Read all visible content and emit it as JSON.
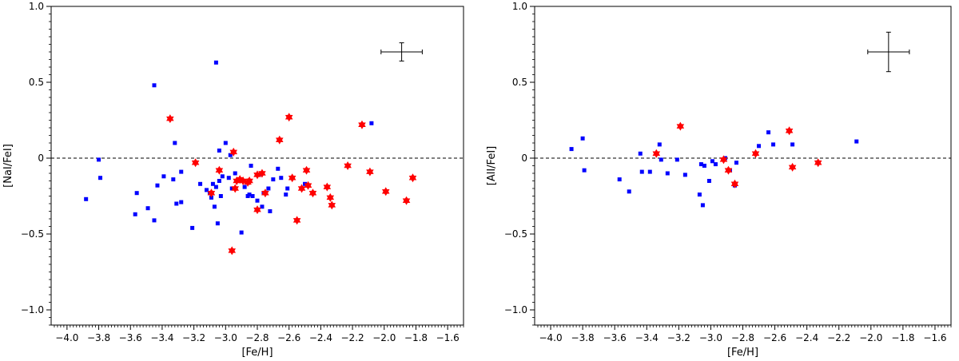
{
  "chart_data": [
    {
      "type": "scatter",
      "title": "",
      "xlabel": "[Fe/H]",
      "ylabel": "[NaI/FeI]",
      "xlim": [
        -4.1,
        -1.5
      ],
      "ylim": [
        -1.1,
        1.0
      ],
      "xticks": [
        -4.0,
        -3.8,
        -3.6,
        -3.4,
        -3.2,
        -3.0,
        -2.8,
        -2.6,
        -2.4,
        -2.2,
        -2.0,
        -1.8,
        -1.6
      ],
      "xtick_labels": [
        "−4.0",
        "−3.8",
        "−3.6",
        "−3.4",
        "−3.2",
        "−3.0",
        "−2.8",
        "−2.6",
        "−2.4",
        "−2.2",
        "−2.0",
        "−1.8",
        "−1.6"
      ],
      "yticks": [
        1.0,
        0.5,
        0,
        -0.5,
        -1.0
      ],
      "ytick_labels": [
        "1.0",
        "0.5",
        "0",
        "−0.5",
        "−1.0"
      ],
      "reference_line_y": 0,
      "error_bar": {
        "x": -1.89,
        "y": 0.7,
        "xerr": 0.13,
        "yerr": 0.06
      },
      "series": [
        {
          "name": "blue squares",
          "marker": "square",
          "color": "#0000ff",
          "points": [
            [
              -3.88,
              -0.27
            ],
            [
              -3.8,
              -0.01
            ],
            [
              -3.79,
              -0.13
            ],
            [
              -3.56,
              -0.23
            ],
            [
              -3.57,
              -0.37
            ],
            [
              -3.49,
              -0.33
            ],
            [
              -3.45,
              0.48
            ],
            [
              -3.45,
              -0.41
            ],
            [
              -3.43,
              -0.18
            ],
            [
              -3.39,
              -0.12
            ],
            [
              -3.33,
              -0.14
            ],
            [
              -3.32,
              0.1
            ],
            [
              -3.31,
              -0.3
            ],
            [
              -3.28,
              -0.29
            ],
            [
              -3.28,
              -0.09
            ],
            [
              -3.21,
              -0.46
            ],
            [
              -3.16,
              -0.17
            ],
            [
              -3.12,
              -0.21
            ],
            [
              -3.1,
              -0.23
            ],
            [
              -3.09,
              -0.26
            ],
            [
              -3.08,
              -0.17
            ],
            [
              -3.07,
              -0.32
            ],
            [
              -3.06,
              0.63
            ],
            [
              -3.06,
              -0.19
            ],
            [
              -3.05,
              -0.43
            ],
            [
              -3.04,
              0.05
            ],
            [
              -3.04,
              -0.15
            ],
            [
              -3.03,
              -0.25
            ],
            [
              -3.02,
              -0.12
            ],
            [
              -3.0,
              0.1
            ],
            [
              -2.98,
              -0.13
            ],
            [
              -2.97,
              0.02
            ],
            [
              -2.96,
              -0.2
            ],
            [
              -2.94,
              -0.1
            ],
            [
              -2.93,
              -0.15
            ],
            [
              -2.9,
              -0.49
            ],
            [
              -2.88,
              -0.19
            ],
            [
              -2.86,
              -0.25
            ],
            [
              -2.85,
              -0.24
            ],
            [
              -2.84,
              -0.05
            ],
            [
              -2.83,
              -0.25
            ],
            [
              -2.8,
              -0.28
            ],
            [
              -2.79,
              -0.11
            ],
            [
              -2.77,
              -0.32
            ],
            [
              -2.76,
              -0.23
            ],
            [
              -2.73,
              -0.2
            ],
            [
              -2.72,
              -0.35
            ],
            [
              -2.7,
              -0.14
            ],
            [
              -2.67,
              -0.07
            ],
            [
              -2.65,
              -0.13
            ],
            [
              -2.62,
              -0.24
            ],
            [
              -2.61,
              -0.2
            ],
            [
              -2.5,
              -0.17
            ],
            [
              -2.08,
              0.23
            ]
          ]
        },
        {
          "name": "red stars",
          "marker": "star",
          "color": "#ff0000",
          "points": [
            [
              -3.35,
              0.26
            ],
            [
              -3.19,
              -0.03
            ],
            [
              -3.09,
              -0.23
            ],
            [
              -3.04,
              -0.08
            ],
            [
              -2.96,
              -0.61
            ],
            [
              -2.95,
              0.04
            ],
            [
              -2.94,
              -0.2
            ],
            [
              -2.93,
              -0.15
            ],
            [
              -2.91,
              -0.14
            ],
            [
              -2.89,
              -0.15
            ],
            [
              -2.86,
              -0.16
            ],
            [
              -2.85,
              -0.15
            ],
            [
              -2.8,
              -0.34
            ],
            [
              -2.8,
              -0.11
            ],
            [
              -2.77,
              -0.1
            ],
            [
              -2.75,
              -0.23
            ],
            [
              -2.66,
              0.12
            ],
            [
              -2.6,
              0.27
            ],
            [
              -2.58,
              -0.13
            ],
            [
              -2.55,
              -0.41
            ],
            [
              -2.52,
              -0.2
            ],
            [
              -2.49,
              -0.08
            ],
            [
              -2.48,
              -0.18
            ],
            [
              -2.45,
              -0.23
            ],
            [
              -2.36,
              -0.19
            ],
            [
              -2.34,
              -0.26
            ],
            [
              -2.33,
              -0.31
            ],
            [
              -2.23,
              -0.05
            ],
            [
              -2.14,
              0.22
            ],
            [
              -2.09,
              -0.09
            ],
            [
              -1.99,
              -0.22
            ],
            [
              -1.86,
              -0.28
            ],
            [
              -1.82,
              -0.13
            ]
          ]
        }
      ]
    },
    {
      "type": "scatter",
      "title": "",
      "xlabel": "[Fe/H]",
      "ylabel": "[AlI/FeI]",
      "xlim": [
        -4.1,
        -1.5
      ],
      "ylim": [
        -1.1,
        1.0
      ],
      "xticks": [
        -4.0,
        -3.8,
        -3.6,
        -3.4,
        -3.2,
        -3.0,
        -2.8,
        -2.6,
        -2.4,
        -2.2,
        -2.0,
        -1.8,
        -1.6
      ],
      "xtick_labels": [
        "−4.0",
        "−3.8",
        "−3.6",
        "−3.4",
        "−3.2",
        "−3.0",
        "−2.8",
        "−2.6",
        "−2.4",
        "−2.2",
        "−2.0",
        "−1.8",
        "−1.6"
      ],
      "yticks": [
        1.0,
        0.5,
        0,
        -0.5,
        -1.0
      ],
      "ytick_labels": [
        "1.0",
        "0.5",
        "0",
        "−0.5",
        "−1.0"
      ],
      "reference_line_y": 0,
      "error_bar": {
        "x": -1.89,
        "y": 0.7,
        "xerr": 0.13,
        "yerr": 0.13
      },
      "series": [
        {
          "name": "blue squares",
          "marker": "square",
          "color": "#0000ff",
          "points": [
            [
              -3.87,
              0.06
            ],
            [
              -3.8,
              0.13
            ],
            [
              -3.79,
              -0.08
            ],
            [
              -3.57,
              -0.14
            ],
            [
              -3.51,
              -0.22
            ],
            [
              -3.44,
              0.03
            ],
            [
              -3.43,
              -0.09
            ],
            [
              -3.38,
              -0.09
            ],
            [
              -3.32,
              0.09
            ],
            [
              -3.31,
              -0.01
            ],
            [
              -3.27,
              -0.1
            ],
            [
              -3.21,
              -0.01
            ],
            [
              -3.16,
              -0.11
            ],
            [
              -3.07,
              -0.24
            ],
            [
              -3.06,
              -0.04
            ],
            [
              -3.05,
              -0.31
            ],
            [
              -3.04,
              -0.05
            ],
            [
              -3.01,
              -0.15
            ],
            [
              -2.99,
              -0.02
            ],
            [
              -2.97,
              -0.04
            ],
            [
              -2.91,
              0.0
            ],
            [
              -2.88,
              -0.08
            ],
            [
              -2.85,
              -0.18
            ],
            [
              -2.84,
              -0.03
            ],
            [
              -2.7,
              0.08
            ],
            [
              -2.64,
              0.17
            ],
            [
              -2.61,
              0.09
            ],
            [
              -2.49,
              0.09
            ],
            [
              -2.09,
              0.11
            ]
          ]
        },
        {
          "name": "red stars",
          "marker": "star",
          "color": "#ff0000",
          "points": [
            [
              -3.34,
              0.03
            ],
            [
              -3.19,
              0.21
            ],
            [
              -2.92,
              -0.01
            ],
            [
              -2.89,
              -0.08
            ],
            [
              -2.85,
              -0.17
            ],
            [
              -2.72,
              0.03
            ],
            [
              -2.51,
              0.18
            ],
            [
              -2.49,
              -0.06
            ],
            [
              -2.33,
              -0.03
            ]
          ]
        }
      ]
    }
  ]
}
